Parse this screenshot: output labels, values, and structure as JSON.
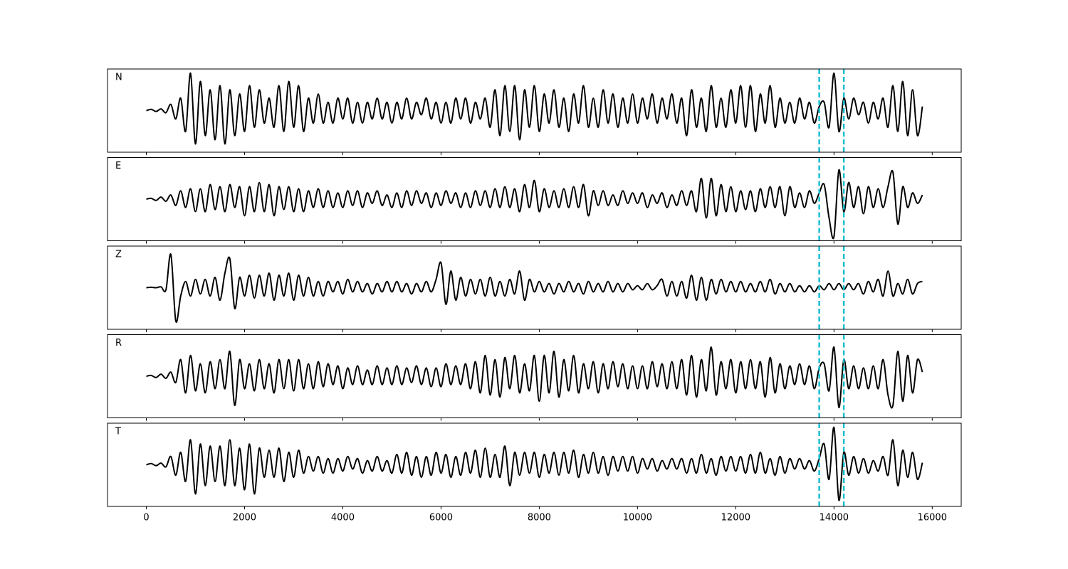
{
  "chart_data": {
    "type": "line",
    "subplots": true,
    "x": [
      0,
      100,
      200,
      300,
      400,
      500,
      600,
      700,
      800,
      900,
      1000,
      1100,
      1200,
      1300,
      1400,
      1500,
      1600,
      1700,
      1800,
      1900,
      2000,
      2100,
      2200,
      2300,
      2400,
      2500,
      2600,
      2700,
      2800,
      2900,
      3000,
      3100,
      3200,
      3300,
      3400,
      3500,
      3600,
      3700,
      3800,
      3900,
      4000,
      4100,
      4200,
      4300,
      4400,
      4500,
      4600,
      4700,
      4800,
      4900,
      5000,
      5100,
      5200,
      5300,
      5400,
      5500,
      5600,
      5700,
      5800,
      5900,
      6000,
      6100,
      6200,
      6300,
      6400,
      6500,
      6600,
      6700,
      6800,
      6900,
      7000,
      7100,
      7200,
      7300,
      7400,
      7500,
      7600,
      7700,
      7800,
      7900,
      8000,
      8100,
      8200,
      8300,
      8400,
      8500,
      8600,
      8700,
      8800,
      8900,
      9000,
      9100,
      9200,
      9300,
      9400,
      9500,
      9600,
      9700,
      9800,
      9900,
      10000,
      10100,
      10200,
      10300,
      10400,
      10500,
      10600,
      10700,
      10800,
      10900,
      11000,
      11100,
      11200,
      11300,
      11400,
      11500,
      11600,
      11700,
      11800,
      11900,
      12000,
      12100,
      12200,
      12300,
      12400,
      12500,
      12600,
      12700,
      12800,
      12900,
      13000,
      13100,
      13200,
      13300,
      13400,
      13500,
      13600,
      13700,
      13800,
      13900,
      14000,
      14100,
      14200,
      14300,
      14400,
      14500,
      14600,
      14700,
      14800,
      14900,
      15000,
      15100,
      15200,
      15300,
      15400,
      15500,
      15600,
      15700,
      15800
    ],
    "xlim": [
      -790,
      16590
    ],
    "xticks": [
      0,
      2000,
      4000,
      6000,
      8000,
      10000,
      12000,
      14000,
      16000
    ],
    "ylim": [
      -1,
      1
    ],
    "vlines": [
      13700,
      14200
    ],
    "vline_color": "#17becf",
    "series": [
      {
        "name": "N",
        "color": "#000000",
        "values": [
          0,
          0.03,
          -0.02,
          0.04,
          -0.05,
          0.15,
          -0.2,
          0.3,
          -0.5,
          0.9,
          -0.8,
          0.7,
          -0.6,
          0.5,
          -0.7,
          0.6,
          -0.8,
          0.5,
          -0.6,
          0.4,
          -0.5,
          0.6,
          -0.4,
          0.5,
          -0.3,
          0.3,
          -0.4,
          0.6,
          -0.5,
          0.7,
          -0.4,
          0.6,
          -0.5,
          0.3,
          -0.3,
          0.4,
          -0.3,
          0.2,
          -0.3,
          0.3,
          -0.2,
          0.3,
          -0.3,
          0.2,
          -0.3,
          0.2,
          -0.2,
          0.3,
          -0.2,
          0.2,
          -0.3,
          0.2,
          -0.2,
          0.3,
          -0.2,
          0.2,
          -0.1,
          0.3,
          -0.2,
          0.2,
          -0.3,
          0.2,
          -0.3,
          0.3,
          -0.2,
          0.3,
          -0.3,
          0.2,
          -0.2,
          0.3,
          -0.4,
          0.5,
          -0.6,
          0.6,
          -0.5,
          0.6,
          -0.7,
          0.5,
          -0.4,
          0.6,
          -0.5,
          0.4,
          -0.3,
          0.5,
          -0.4,
          0.3,
          -0.5,
          0.4,
          -0.3,
          0.6,
          -0.4,
          0.3,
          -0.4,
          0.5,
          -0.3,
          0.4,
          -0.4,
          0.3,
          -0.3,
          0.4,
          -0.3,
          0.3,
          -0.2,
          0.4,
          -0.3,
          0.3,
          -0.2,
          0.4,
          -0.3,
          0.3,
          -0.6,
          0.5,
          -0.4,
          0.3,
          -0.5,
          0.6,
          -0.4,
          0.3,
          -0.4,
          0.5,
          -0.3,
          0.6,
          -0.4,
          0.6,
          -0.5,
          0.4,
          -0.3,
          0.6,
          -0.4,
          0.3,
          -0.3,
          0.2,
          -0.3,
          0.3,
          -0.2,
          0.2,
          -0.3,
          0.1,
          0.2,
          -0.4,
          0.9,
          -0.5,
          0.3,
          -0.2,
          0.3,
          -0.1,
          0.2,
          -0.3,
          0.2,
          -0.2,
          0.3,
          -0.4,
          0.6,
          -0.5,
          0.7,
          -0.6,
          0.5,
          -0.6,
          0.1
        ]
      },
      {
        "name": "E",
        "color": "#000000",
        "values": [
          0,
          0.02,
          -0.03,
          0.05,
          -0.05,
          0.1,
          -0.15,
          0.2,
          -0.2,
          0.25,
          -0.3,
          0.25,
          -0.3,
          0.35,
          -0.25,
          0.3,
          -0.3,
          0.35,
          -0.2,
          0.3,
          -0.4,
          0.3,
          -0.3,
          0.4,
          -0.3,
          0.35,
          -0.4,
          0.3,
          -0.25,
          0.3,
          -0.3,
          0.25,
          -0.3,
          0.2,
          -0.2,
          0.25,
          -0.2,
          0.2,
          -0.2,
          0.15,
          -0.2,
          0.2,
          -0.15,
          0.2,
          -0.2,
          0.15,
          -0.1,
          0.2,
          -0.15,
          0.1,
          -0.2,
          0.15,
          -0.2,
          0.2,
          -0.15,
          0.2,
          -0.1,
          0.15,
          -0.2,
          0.15,
          -0.15,
          0.2,
          -0.1,
          0.15,
          -0.2,
          0.15,
          -0.2,
          0.2,
          -0.15,
          0.2,
          -0.2,
          0.25,
          -0.2,
          0.3,
          -0.2,
          0.25,
          -0.3,
          0.35,
          -0.2,
          0.45,
          -0.3,
          0.25,
          -0.2,
          0.2,
          -0.2,
          0.25,
          -0.2,
          0.3,
          -0.2,
          0.35,
          -0.4,
          0.2,
          -0.15,
          0.2,
          -0.15,
          0.1,
          -0.15,
          0.2,
          -0.1,
          0.15,
          -0.1,
          0.15,
          -0.2,
          0.1,
          -0.1,
          0.15,
          -0.2,
          0.1,
          -0.15,
          0.2,
          -0.15,
          0.2,
          -0.3,
          0.5,
          -0.45,
          0.5,
          -0.4,
          0.35,
          -0.3,
          0.3,
          -0.3,
          0.2,
          -0.25,
          0.2,
          -0.3,
          0.25,
          -0.2,
          0.3,
          -0.2,
          0.3,
          -0.4,
          0.3,
          -0.2,
          0.15,
          -0.2,
          0.2,
          -0.1,
          0.15,
          0.35,
          -0.45,
          -0.9,
          0.7,
          -0.3,
          0.4,
          -0.2,
          0.3,
          -0.35,
          0.3,
          -0.2,
          0.25,
          -0.2,
          0.3,
          0.65,
          -0.6,
          0.3,
          -0.2,
          0.15,
          -0.1,
          0.1
        ]
      },
      {
        "name": "Z",
        "color": "#000000",
        "values": [
          0,
          0.01,
          0,
          0.02,
          -0.05,
          0.8,
          -0.8,
          -0.2,
          0.15,
          -0.2,
          0.2,
          -0.15,
          0.2,
          -0.2,
          0.25,
          -0.3,
          0.35,
          0.7,
          -0.5,
          0.25,
          -0.2,
          0.3,
          -0.25,
          0.3,
          -0.2,
          0.35,
          -0.3,
          0.3,
          -0.2,
          0.35,
          -0.3,
          0.3,
          -0.2,
          0.25,
          -0.2,
          0.15,
          -0.2,
          0.15,
          -0.1,
          0.15,
          -0.15,
          0.2,
          -0.1,
          0.15,
          -0.1,
          0.1,
          -0.15,
          0.1,
          -0.1,
          0.15,
          -0.1,
          0.15,
          -0.1,
          0.1,
          -0.15,
          0.1,
          -0.1,
          0.15,
          -0.1,
          0.2,
          0.6,
          -0.4,
          0.4,
          -0.3,
          0.25,
          -0.2,
          0.2,
          -0.15,
          0.2,
          -0.2,
          0.25,
          -0.2,
          0.15,
          -0.2,
          0.2,
          -0.15,
          0.4,
          -0.3,
          0.2,
          -0.1,
          0.15,
          -0.1,
          0.1,
          -0.15,
          0.1,
          -0.1,
          0.15,
          -0.1,
          0.1,
          -0.15,
          0.15,
          -0.1,
          0.1,
          -0.1,
          0.15,
          -0.1,
          0.1,
          -0.1,
          0.1,
          -0.05,
          0.05,
          -0.05,
          0.1,
          -0.05,
          0.05,
          0.2,
          -0.2,
          0.15,
          -0.2,
          0.15,
          -0.25,
          0.3,
          -0.3,
          0.25,
          -0.3,
          0.2,
          -0.15,
          0.2,
          -0.1,
          0.15,
          -0.1,
          0.15,
          -0.1,
          0.1,
          -0.1,
          0.15,
          -0.1,
          0.2,
          -0.15,
          0.1,
          -0.1,
          0.1,
          -0.1,
          0.05,
          -0.1,
          0.05,
          -0.1,
          0.05,
          -0.05,
          0.1,
          -0.05,
          0.1,
          -0.05,
          0.1,
          -0.05,
          0.1,
          -0.15,
          0.15,
          -0.1,
          0.2,
          -0.2,
          0.4,
          -0.2,
          0.1,
          -0.15,
          0.2,
          -0.15,
          0.1,
          0.15
        ]
      },
      {
        "name": "R",
        "color": "#000000",
        "values": [
          0,
          0.02,
          -0.03,
          0.05,
          -0.05,
          0.1,
          -0.15,
          0.4,
          -0.4,
          0.5,
          -0.35,
          0.3,
          -0.4,
          0.35,
          -0.3,
          0.4,
          -0.3,
          0.6,
          -0.7,
          0.4,
          -0.3,
          0.3,
          -0.35,
          0.4,
          -0.3,
          0.3,
          -0.4,
          0.4,
          -0.3,
          0.4,
          -0.35,
          0.4,
          -0.3,
          0.3,
          -0.3,
          0.35,
          -0.25,
          0.3,
          -0.2,
          0.25,
          -0.3,
          0.2,
          -0.2,
          0.25,
          -0.2,
          0.15,
          -0.2,
          0.25,
          -0.2,
          0.2,
          -0.2,
          0.25,
          -0.2,
          0.2,
          -0.15,
          0.25,
          -0.2,
          0.2,
          -0.25,
          0.2,
          -0.25,
          0.3,
          -0.2,
          0.25,
          -0.2,
          0.3,
          -0.3,
          0.35,
          -0.4,
          0.5,
          -0.45,
          0.4,
          -0.5,
          0.45,
          -0.3,
          0.5,
          -0.4,
          0.3,
          -0.35,
          0.5,
          -0.6,
          0.5,
          -0.4,
          0.6,
          -0.5,
          0.4,
          -0.35,
          0.5,
          -0.4,
          0.3,
          -0.3,
          0.35,
          -0.4,
          0.3,
          -0.3,
          0.35,
          -0.25,
          0.3,
          -0.3,
          0.25,
          -0.3,
          0.25,
          -0.3,
          0.35,
          -0.25,
          0.3,
          -0.3,
          0.35,
          -0.3,
          0.4,
          -0.45,
          0.5,
          -0.5,
          0.4,
          -0.35,
          0.7,
          -0.45,
          0.35,
          -0.3,
          0.4,
          -0.4,
          0.35,
          -0.3,
          0.4,
          -0.3,
          0.35,
          -0.5,
          0.45,
          -0.4,
          0.3,
          -0.3,
          0.25,
          -0.2,
          0.3,
          -0.2,
          0.25,
          -0.3,
          0.2,
          0.3,
          -0.35,
          0.7,
          -0.75,
          0.4,
          -0.3,
          0.25,
          -0.3,
          0.2,
          -0.3,
          0.25,
          -0.3,
          0.4,
          -0.45,
          -0.7,
          0.6,
          -0.6,
          0.5,
          -0.4,
          0.4,
          0.1
        ]
      },
      {
        "name": "T",
        "color": "#000000",
        "values": [
          0,
          0.03,
          -0.02,
          0.04,
          -0.05,
          0.2,
          -0.25,
          0.3,
          -0.4,
          0.6,
          -0.7,
          0.5,
          -0.5,
          0.45,
          -0.4,
          0.45,
          -0.5,
          0.6,
          -0.5,
          0.4,
          -0.6,
          0.5,
          -0.7,
          0.4,
          -0.3,
          0.35,
          -0.3,
          0.4,
          -0.4,
          0.3,
          -0.3,
          0.35,
          -0.2,
          0.2,
          -0.15,
          0.2,
          -0.2,
          0.15,
          -0.2,
          0.15,
          -0.15,
          0.2,
          -0.1,
          0.15,
          -0.2,
          0.1,
          -0.15,
          0.2,
          -0.15,
          0.1,
          -0.2,
          0.25,
          -0.2,
          0.3,
          -0.25,
          0.2,
          -0.3,
          0.2,
          -0.25,
          0.3,
          -0.2,
          0.25,
          -0.3,
          0.2,
          -0.25,
          0.3,
          -0.2,
          0.35,
          -0.3,
          0.4,
          -0.3,
          0.25,
          -0.3,
          0.45,
          -0.5,
          0.3,
          -0.25,
          0.3,
          -0.2,
          0.3,
          -0.3,
          0.25,
          -0.2,
          0.3,
          -0.25,
          0.3,
          -0.2,
          0.35,
          -0.3,
          0.25,
          -0.2,
          0.3,
          -0.2,
          0.2,
          -0.25,
          0.2,
          -0.15,
          0.2,
          -0.15,
          0.2,
          -0.2,
          0.15,
          -0.1,
          0.15,
          -0.15,
          0.1,
          -0.1,
          0.15,
          -0.1,
          0.15,
          -0.2,
          0.15,
          -0.2,
          0.25,
          -0.2,
          0.15,
          -0.25,
          0.2,
          -0.15,
          0.2,
          -0.15,
          0.2,
          -0.2,
          0.25,
          -0.2,
          0.3,
          -0.2,
          0.15,
          -0.25,
          0.2,
          -0.2,
          0.15,
          -0.1,
          0.15,
          -0.1,
          0.1,
          -0.15,
          0.15,
          0.5,
          -0.35,
          0.9,
          -0.85,
          0.3,
          -0.25,
          0.2,
          -0.2,
          0.15,
          -0.2,
          0.1,
          -0.15,
          0.2,
          -0.25,
          0.6,
          -0.5,
          0.35,
          -0.3,
          0.3,
          -0.35,
          0.05
        ]
      }
    ]
  }
}
